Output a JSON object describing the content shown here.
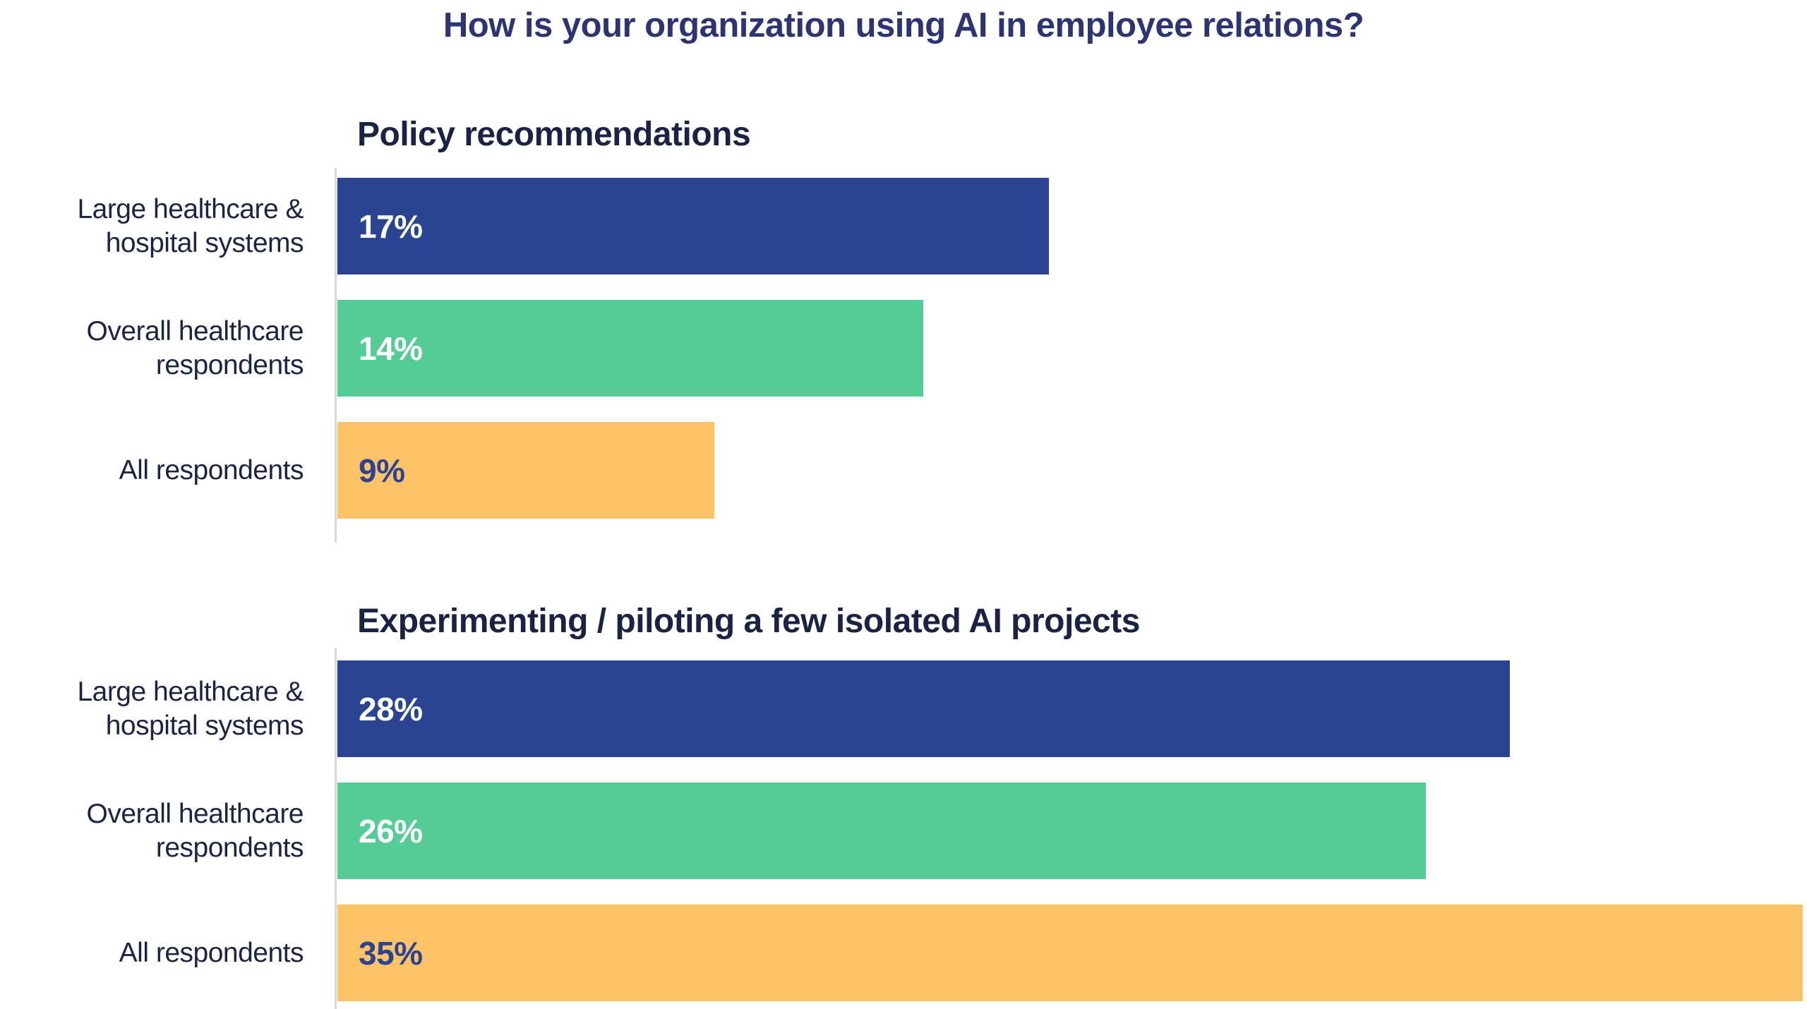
{
  "chart_data": {
    "type": "bar",
    "orientation": "horizontal",
    "title": "How is your organization using AI in employee relations?",
    "unit": "%",
    "categories": [
      "Large healthcare & hospital systems",
      "Overall healthcare respondents",
      "All respondents"
    ],
    "category_display_lines": [
      [
        "Large healthcare &",
        "hospital systems"
      ],
      [
        "Overall healthcare",
        "respondents"
      ],
      [
        "All respondents"
      ]
    ],
    "groups": [
      {
        "label": "Policy recommendations",
        "values": [
          17,
          14,
          9
        ]
      },
      {
        "label": "Experimenting / piloting a few isolated AI projects",
        "values": [
          28,
          26,
          35
        ]
      }
    ],
    "bar_colors": [
      "#2a4492",
      "#55cb96",
      "#fdc366"
    ],
    "value_label_colors": [
      "#ffffff",
      "#ffffff",
      "#2a4492"
    ],
    "xlim": [
      0,
      35.1
    ],
    "grid": false,
    "legend_position": "none",
    "axis_line_color": "#d9d9d9"
  },
  "colors": {
    "background": "#ffffff",
    "title_text": "#2c3474",
    "heading_text": "#1b2345",
    "label_text": "#1c2445"
  }
}
